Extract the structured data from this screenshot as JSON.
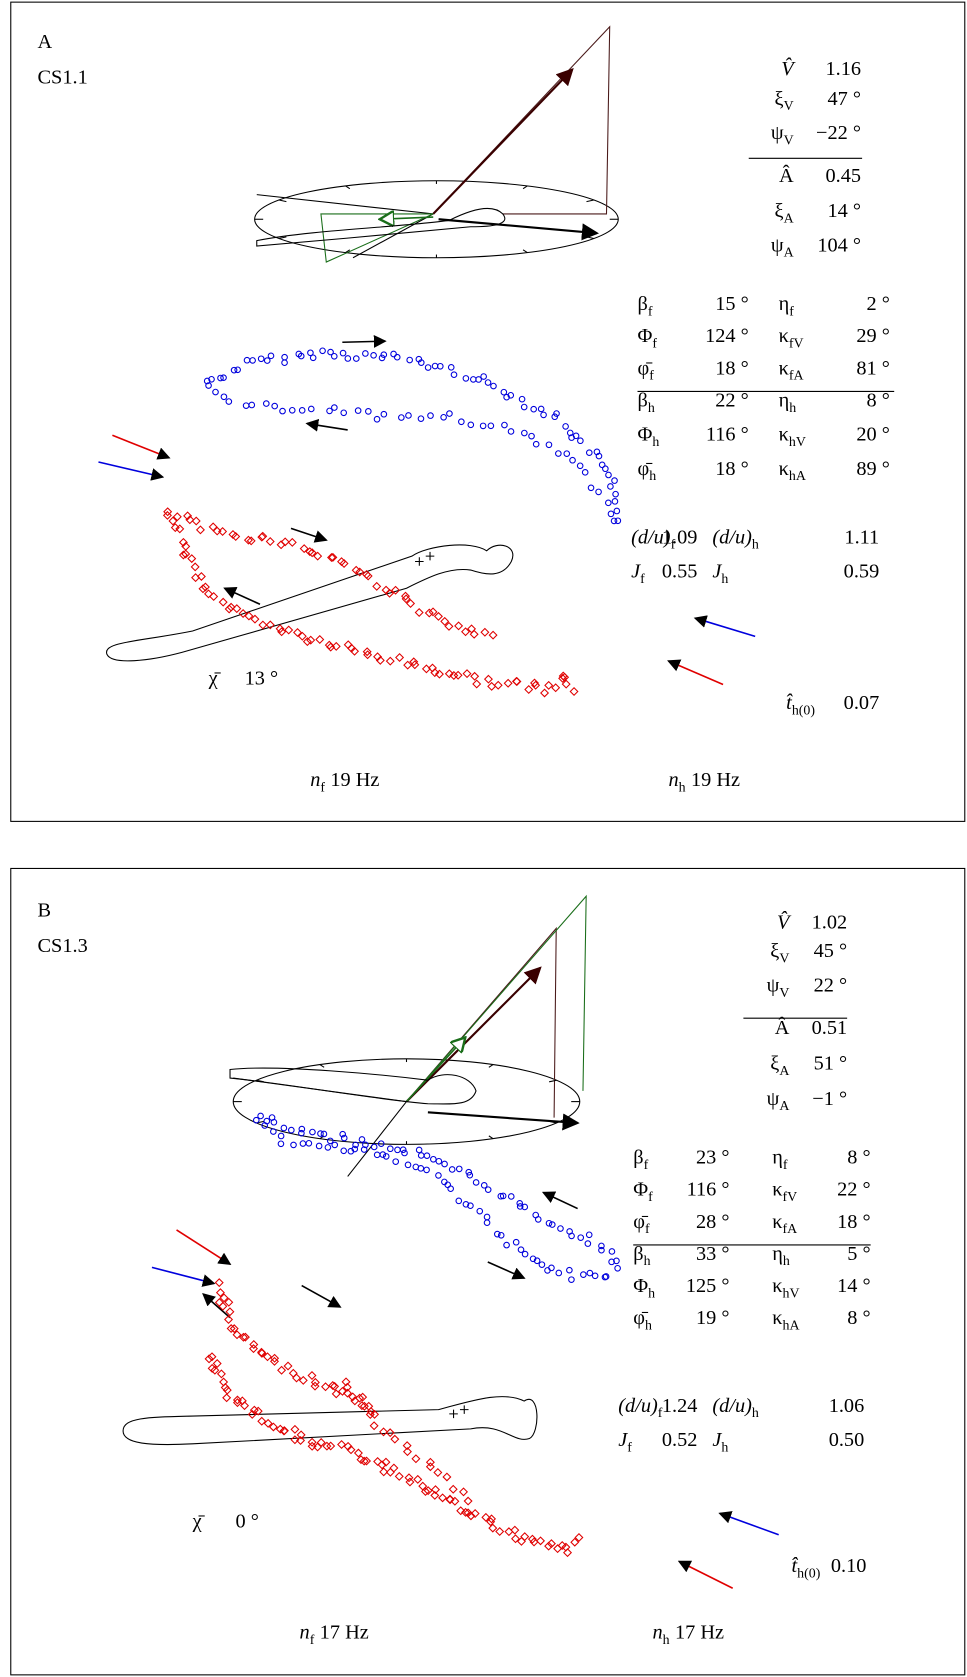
{
  "panels": [
    {
      "label": "A",
      "case": "CS1.1",
      "vector_table": [
        {
          "sym": "V̂",
          "val": "1.16"
        },
        {
          "sym": "ξ",
          "sub": "V",
          "val": "47 °"
        },
        {
          "sym": "ψ",
          "sub": "V",
          "val": "−22 °"
        },
        {
          "sym": "Â",
          "val": "0.45"
        },
        {
          "sym": "ξ",
          "sub": "A",
          "val": "14 °"
        },
        {
          "sym": "ψ",
          "sub": "A",
          "val": "104 °"
        }
      ],
      "kinematics": [
        [
          {
            "sym": "β",
            "sub": "f",
            "val": "15 °"
          },
          {
            "sym": "η",
            "sub": "f",
            "val": "2 °"
          }
        ],
        [
          {
            "sym": "Φ",
            "sub": "f",
            "val": "124 °"
          },
          {
            "sym": "κ",
            "sub": "fV",
            "val": "29 °"
          }
        ],
        [
          {
            "sym": "φ̄",
            "sub": "f",
            "val": "18 °"
          },
          {
            "sym": "κ",
            "sub": "fA",
            "val": "81 °"
          }
        ],
        [
          {
            "sym": "β",
            "sub": "h",
            "val": "22 °"
          },
          {
            "sym": "η",
            "sub": "h",
            "val": "8 °"
          }
        ],
        [
          {
            "sym": "Φ",
            "sub": "h",
            "val": "116 °"
          },
          {
            "sym": "κ",
            "sub": "hV",
            "val": "20 °"
          }
        ],
        [
          {
            "sym": "φ̄",
            "sub": "h",
            "val": "18 °"
          },
          {
            "sym": "κ",
            "sub": "hA",
            "val": "89 °"
          }
        ]
      ],
      "ratios": [
        [
          {
            "sym": "(d/u)",
            "sub": "f",
            "val": "1.09"
          },
          {
            "sym": "(d/u)",
            "sub": "h",
            "val": "1.11"
          }
        ],
        [
          {
            "sym": "J",
            "sub": "f",
            "val": "0.55"
          },
          {
            "sym": "J",
            "sub": "h",
            "val": "0.59"
          }
        ]
      ],
      "chi": {
        "sym": "χ̄",
        "val": "13 °"
      },
      "t_hat": {
        "sym": "t̂",
        "sub": "h(0)",
        "val": "0.07"
      },
      "frequencies": [
        {
          "sym": "n",
          "sub": "f",
          "val": "19 Hz"
        },
        {
          "sym": "n",
          "sub": "h",
          "val": "19 Hz"
        }
      ]
    },
    {
      "label": "B",
      "case": "CS1.3",
      "vector_table": [
        {
          "sym": "V̂",
          "val": "1.02"
        },
        {
          "sym": "ξ",
          "sub": "V",
          "val": "45 °"
        },
        {
          "sym": "ψ",
          "sub": "V",
          "val": "22 °"
        },
        {
          "sym": "Â",
          "val": "0.51"
        },
        {
          "sym": "ξ",
          "sub": "A",
          "val": "51 °"
        },
        {
          "sym": "ψ",
          "sub": "A",
          "val": "−1 °"
        }
      ],
      "kinematics": [
        [
          {
            "sym": "β",
            "sub": "f",
            "val": "23 °"
          },
          {
            "sym": "η",
            "sub": "f",
            "val": "8 °"
          }
        ],
        [
          {
            "sym": "Φ",
            "sub": "f",
            "val": "116 °"
          },
          {
            "sym": "κ",
            "sub": "fV",
            "val": "22 °"
          }
        ],
        [
          {
            "sym": "φ̄",
            "sub": "f",
            "val": "28 °"
          },
          {
            "sym": "κ",
            "sub": "fA",
            "val": "18 °"
          }
        ],
        [
          {
            "sym": "β",
            "sub": "h",
            "val": "33 °"
          },
          {
            "sym": "η",
            "sub": "h",
            "val": "5 °"
          }
        ],
        [
          {
            "sym": "Φ",
            "sub": "h",
            "val": "125 °"
          },
          {
            "sym": "κ",
            "sub": "hV",
            "val": "14 °"
          }
        ],
        [
          {
            "sym": "φ̄",
            "sub": "h",
            "val": "19 °"
          },
          {
            "sym": "κ",
            "sub": "hA",
            "val": "8 °"
          }
        ]
      ],
      "ratios": [
        [
          {
            "sym": "(d/u)",
            "sub": "f",
            "val": "1.24"
          },
          {
            "sym": "(d/u)",
            "sub": "h",
            "val": "1.06"
          }
        ],
        [
          {
            "sym": "J",
            "sub": "f",
            "val": "0.52"
          },
          {
            "sym": "J",
            "sub": "h",
            "val": "0.50"
          }
        ]
      ],
      "chi": {
        "sym": "χ̄",
        "val": "0 °"
      },
      "t_hat": {
        "sym": "t̂",
        "sub": "h(0)",
        "val": "0.10"
      },
      "frequencies": [
        {
          "sym": "n",
          "sub": "f",
          "val": "17 Hz"
        },
        {
          "sym": "n",
          "sub": "h",
          "val": "17 Hz"
        }
      ]
    }
  ]
}
